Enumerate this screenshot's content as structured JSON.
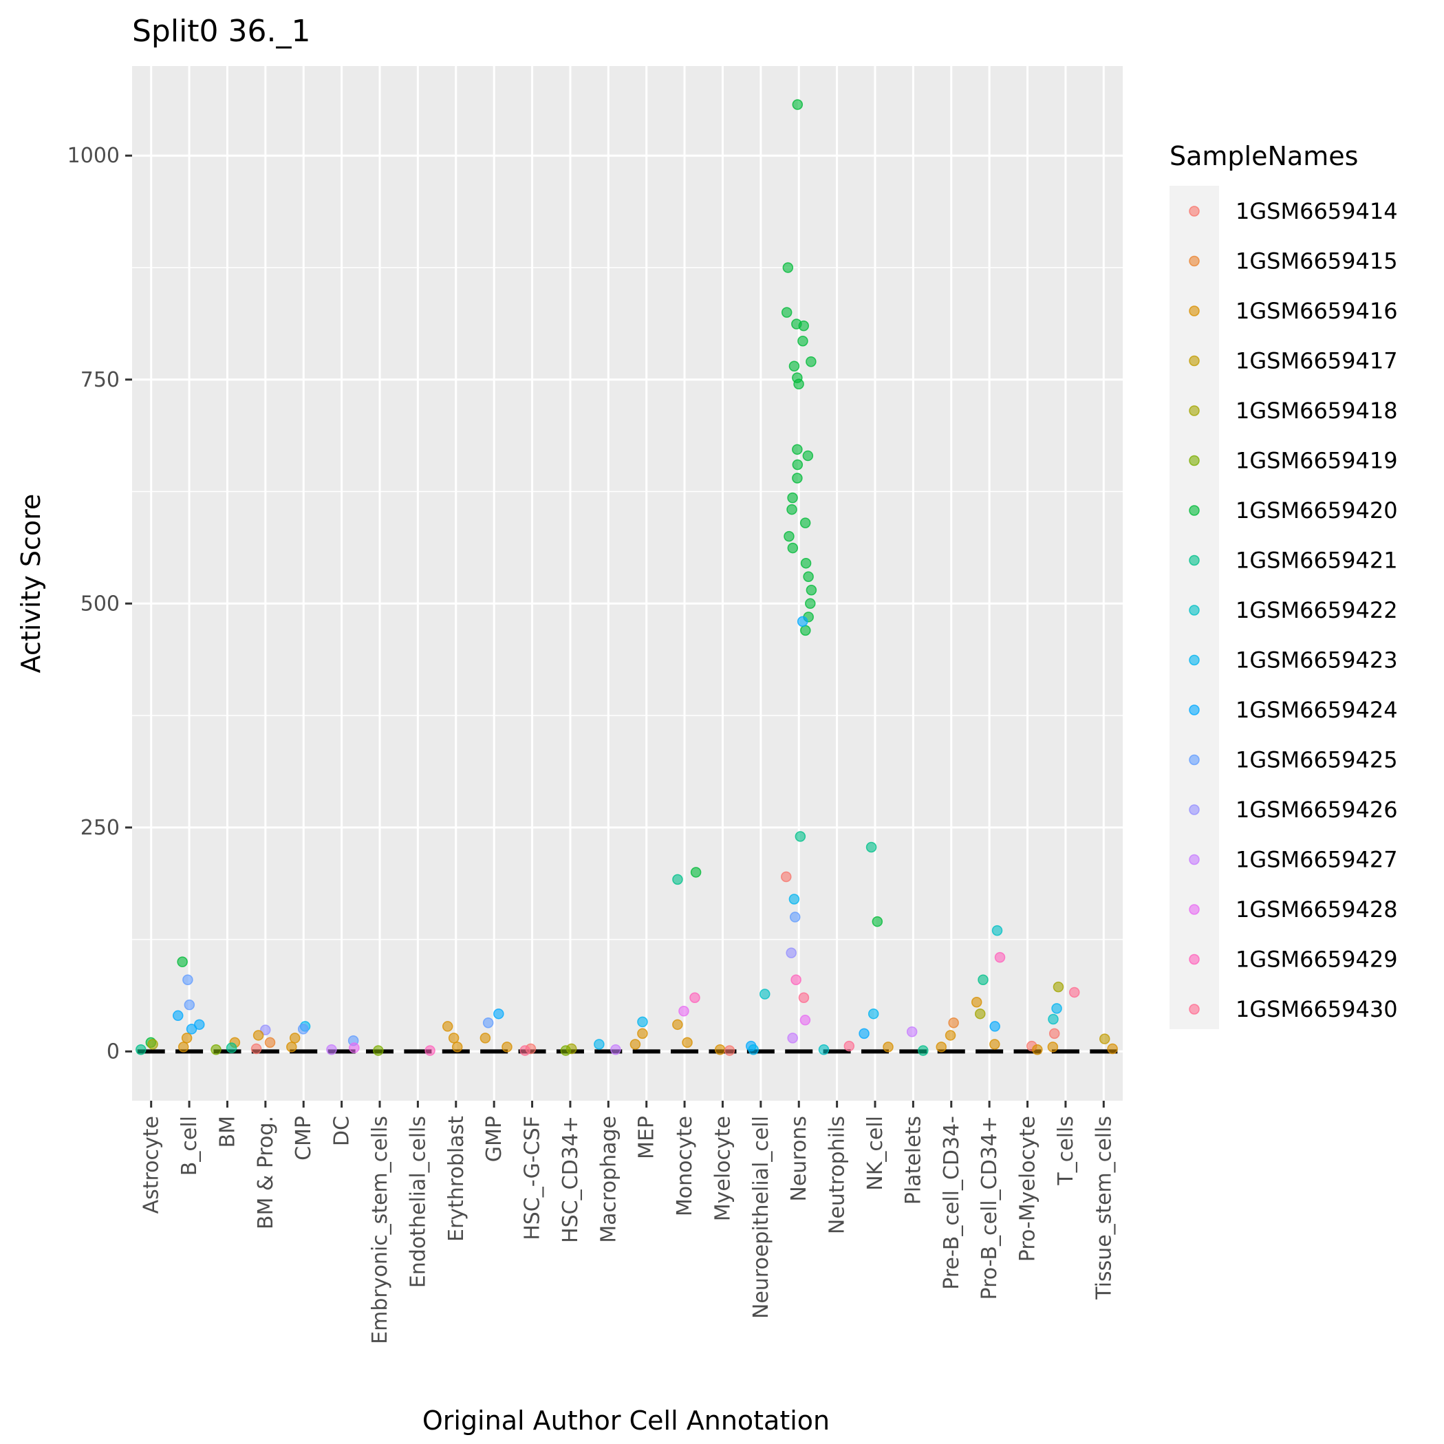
{
  "chart_data": {
    "type": "scatter",
    "title": "Split0 36._1",
    "xlabel": "Original Author Cell Annotation",
    "ylabel": "Activity Score",
    "ylim": [
      -55,
      1100
    ],
    "yticks": [
      0,
      250,
      500,
      750,
      1000
    ],
    "grid": true,
    "legend_position": "right",
    "legend_title": "SampleNames",
    "categories": [
      "Astrocyte",
      "B_cell",
      "BM",
      "BM & Prog.",
      "CMP",
      "DC",
      "Embryonic_stem_cells",
      "Endothelial_cells",
      "Erythroblast",
      "GMP",
      "HSC_-G-CSF",
      "HSC_CD34+",
      "Macrophage",
      "MEP",
      "Monocyte",
      "Myelocyte",
      "Neuroepithelial_cell",
      "Neurons",
      "Neutrophils",
      "NK_cell",
      "Platelets",
      "Pre-B_cell_CD34-",
      "Pro-B_cell_CD34+",
      "Pro-Myelocyte",
      "T_cells",
      "Tissue_stem_cells"
    ],
    "series": [
      {
        "name": "1GSM6659414",
        "color": "#F8766D"
      },
      {
        "name": "1GSM6659415",
        "color": "#EA8331"
      },
      {
        "name": "1GSM6659416",
        "color": "#D89000"
      },
      {
        "name": "1GSM6659417",
        "color": "#C09B00"
      },
      {
        "name": "1GSM6659418",
        "color": "#A3A500"
      },
      {
        "name": "1GSM6659419",
        "color": "#7CAE00"
      },
      {
        "name": "1GSM6659420",
        "color": "#00BA38"
      },
      {
        "name": "1GSM6659421",
        "color": "#00C08B"
      },
      {
        "name": "1GSM6659422",
        "color": "#00BFC4"
      },
      {
        "name": "1GSM6659423",
        "color": "#00B4F0"
      },
      {
        "name": "1GSM6659424",
        "color": "#00A9FF"
      },
      {
        "name": "1GSM6659425",
        "color": "#619CFF"
      },
      {
        "name": "1GSM6659426",
        "color": "#9590FF"
      },
      {
        "name": "1GSM6659427",
        "color": "#C77CFF"
      },
      {
        "name": "1GSM6659428",
        "color": "#E76BF3"
      },
      {
        "name": "1GSM6659429",
        "color": "#FF62BC"
      },
      {
        "name": "1GSM6659430",
        "color": "#FF6C91"
      }
    ],
    "points": [
      {
        "category": "Astrocyte",
        "sample": "1GSM6659420",
        "y": 10
      },
      {
        "category": "Astrocyte",
        "sample": "1GSM6659418",
        "y": 8
      },
      {
        "category": "Astrocyte",
        "sample": "1GSM6659421",
        "y": 2
      },
      {
        "category": "B_cell",
        "sample": "1GSM6659420",
        "y": 100
      },
      {
        "category": "B_cell",
        "sample": "1GSM6659425",
        "y": 80
      },
      {
        "category": "B_cell",
        "sample": "1GSM6659425",
        "y": 52
      },
      {
        "category": "B_cell",
        "sample": "1GSM6659424",
        "y": 40
      },
      {
        "category": "B_cell",
        "sample": "1GSM6659424",
        "y": 30
      },
      {
        "category": "B_cell",
        "sample": "1GSM6659424",
        "y": 25
      },
      {
        "category": "B_cell",
        "sample": "1GSM6659416",
        "y": 15
      },
      {
        "category": "B_cell",
        "sample": "1GSM6659416",
        "y": 5
      },
      {
        "category": "BM",
        "sample": "1GSM6659416",
        "y": 10
      },
      {
        "category": "BM",
        "sample": "1GSM6659421",
        "y": 4
      },
      {
        "category": "BM",
        "sample": "1GSM6659419",
        "y": 2
      },
      {
        "category": "BM & Prog.",
        "sample": "1GSM6659426",
        "y": 24
      },
      {
        "category": "BM & Prog.",
        "sample": "1GSM6659416",
        "y": 18
      },
      {
        "category": "BM & Prog.",
        "sample": "1GSM6659415",
        "y": 10
      },
      {
        "category": "BM & Prog.",
        "sample": "1GSM6659414",
        "y": 3
      },
      {
        "category": "CMP",
        "sample": "1GSM6659423",
        "y": 28
      },
      {
        "category": "CMP",
        "sample": "1GSM6659425",
        "y": 25
      },
      {
        "category": "CMP",
        "sample": "1GSM6659416",
        "y": 15
      },
      {
        "category": "CMP",
        "sample": "1GSM6659416",
        "y": 5
      },
      {
        "category": "DC",
        "sample": "1GSM6659425",
        "y": 12
      },
      {
        "category": "DC",
        "sample": "1GSM6659428",
        "y": 4
      },
      {
        "category": "DC",
        "sample": "1GSM6659427",
        "y": 2
      },
      {
        "category": "Embryonic_stem_cells",
        "sample": "1GSM6659419",
        "y": 1
      },
      {
        "category": "Endothelial_cells",
        "sample": "1GSM6659429",
        "y": 1
      },
      {
        "category": "Erythroblast",
        "sample": "1GSM6659416",
        "y": 28
      },
      {
        "category": "Erythroblast",
        "sample": "1GSM6659416",
        "y": 15
      },
      {
        "category": "Erythroblast",
        "sample": "1GSM6659416",
        "y": 5
      },
      {
        "category": "GMP",
        "sample": "1GSM6659424",
        "y": 42
      },
      {
        "category": "GMP",
        "sample": "1GSM6659425",
        "y": 32
      },
      {
        "category": "GMP",
        "sample": "1GSM6659416",
        "y": 15
      },
      {
        "category": "GMP",
        "sample": "1GSM6659416",
        "y": 5
      },
      {
        "category": "HSC_-G-CSF",
        "sample": "1GSM6659414",
        "y": 3
      },
      {
        "category": "HSC_-G-CSF",
        "sample": "1GSM6659430",
        "y": 1
      },
      {
        "category": "HSC_CD34+",
        "sample": "1GSM6659418",
        "y": 3
      },
      {
        "category": "HSC_CD34+",
        "sample": "1GSM6659419",
        "y": 1
      },
      {
        "category": "Macrophage",
        "sample": "1GSM6659423",
        "y": 8
      },
      {
        "category": "Macrophage",
        "sample": "1GSM6659427",
        "y": 2
      },
      {
        "category": "MEP",
        "sample": "1GSM6659423",
        "y": 33
      },
      {
        "category": "MEP",
        "sample": "1GSM6659416",
        "y": 20
      },
      {
        "category": "MEP",
        "sample": "1GSM6659416",
        "y": 8
      },
      {
        "category": "Monocyte",
        "sample": "1GSM6659420",
        "y": 200
      },
      {
        "category": "Monocyte",
        "sample": "1GSM6659421",
        "y": 192
      },
      {
        "category": "Monocyte",
        "sample": "1GSM6659429",
        "y": 60
      },
      {
        "category": "Monocyte",
        "sample": "1GSM6659428",
        "y": 45
      },
      {
        "category": "Monocyte",
        "sample": "1GSM6659416",
        "y": 30
      },
      {
        "category": "Monocyte",
        "sample": "1GSM6659416",
        "y": 10
      },
      {
        "category": "Myelocyte",
        "sample": "1GSM6659416",
        "y": 2
      },
      {
        "category": "Myelocyte",
        "sample": "1GSM6659414",
        "y": 1
      },
      {
        "category": "Neuroepithelial_cell",
        "sample": "1GSM6659422",
        "y": 64
      },
      {
        "category": "Neuroepithelial_cell",
        "sample": "1GSM6659424",
        "y": 6
      },
      {
        "category": "Neuroepithelial_cell",
        "sample": "1GSM6659423",
        "y": 2
      },
      {
        "category": "Neurons",
        "sample": "1GSM6659420",
        "y": 1057
      },
      {
        "category": "Neurons",
        "sample": "1GSM6659420",
        "y": 875
      },
      {
        "category": "Neurons",
        "sample": "1GSM6659420",
        "y": 825
      },
      {
        "category": "Neurons",
        "sample": "1GSM6659420",
        "y": 812
      },
      {
        "category": "Neurons",
        "sample": "1GSM6659420",
        "y": 810
      },
      {
        "category": "Neurons",
        "sample": "1GSM6659420",
        "y": 793
      },
      {
        "category": "Neurons",
        "sample": "1GSM6659420",
        "y": 770
      },
      {
        "category": "Neurons",
        "sample": "1GSM6659420",
        "y": 765
      },
      {
        "category": "Neurons",
        "sample": "1GSM6659420",
        "y": 752
      },
      {
        "category": "Neurons",
        "sample": "1GSM6659420",
        "y": 745
      },
      {
        "category": "Neurons",
        "sample": "1GSM6659420",
        "y": 672
      },
      {
        "category": "Neurons",
        "sample": "1GSM6659420",
        "y": 665
      },
      {
        "category": "Neurons",
        "sample": "1GSM6659420",
        "y": 655
      },
      {
        "category": "Neurons",
        "sample": "1GSM6659420",
        "y": 640
      },
      {
        "category": "Neurons",
        "sample": "1GSM6659420",
        "y": 618
      },
      {
        "category": "Neurons",
        "sample": "1GSM6659420",
        "y": 605
      },
      {
        "category": "Neurons",
        "sample": "1GSM6659420",
        "y": 590
      },
      {
        "category": "Neurons",
        "sample": "1GSM6659420",
        "y": 575
      },
      {
        "category": "Neurons",
        "sample": "1GSM6659420",
        "y": 562
      },
      {
        "category": "Neurons",
        "sample": "1GSM6659420",
        "y": 545
      },
      {
        "category": "Neurons",
        "sample": "1GSM6659420",
        "y": 530
      },
      {
        "category": "Neurons",
        "sample": "1GSM6659420",
        "y": 515
      },
      {
        "category": "Neurons",
        "sample": "1GSM6659420",
        "y": 500
      },
      {
        "category": "Neurons",
        "sample": "1GSM6659420",
        "y": 485
      },
      {
        "category": "Neurons",
        "sample": "1GSM6659420",
        "y": 470
      },
      {
        "category": "Neurons",
        "sample": "1GSM6659424",
        "y": 480
      },
      {
        "category": "Neurons",
        "sample": "1GSM6659421",
        "y": 240
      },
      {
        "category": "Neurons",
        "sample": "1GSM6659414",
        "y": 195
      },
      {
        "category": "Neurons",
        "sample": "1GSM6659423",
        "y": 170
      },
      {
        "category": "Neurons",
        "sample": "1GSM6659425",
        "y": 150
      },
      {
        "category": "Neurons",
        "sample": "1GSM6659426",
        "y": 110
      },
      {
        "category": "Neurons",
        "sample": "1GSM6659429",
        "y": 80
      },
      {
        "category": "Neurons",
        "sample": "1GSM6659430",
        "y": 60
      },
      {
        "category": "Neurons",
        "sample": "1GSM6659428",
        "y": 35
      },
      {
        "category": "Neurons",
        "sample": "1GSM6659427",
        "y": 15
      },
      {
        "category": "Neutrophils",
        "sample": "1GSM6659430",
        "y": 6
      },
      {
        "category": "Neutrophils",
        "sample": "1GSM6659422",
        "y": 2
      },
      {
        "category": "NK_cell",
        "sample": "1GSM6659421",
        "y": 228
      },
      {
        "category": "NK_cell",
        "sample": "1GSM6659420",
        "y": 145
      },
      {
        "category": "NK_cell",
        "sample": "1GSM6659423",
        "y": 42
      },
      {
        "category": "NK_cell",
        "sample": "1GSM6659424",
        "y": 20
      },
      {
        "category": "NK_cell",
        "sample": "1GSM6659416",
        "y": 5
      },
      {
        "category": "Platelets",
        "sample": "1GSM6659427",
        "y": 22
      },
      {
        "category": "Platelets",
        "sample": "1GSM6659421",
        "y": 1
      },
      {
        "category": "Pre-B_cell_CD34-",
        "sample": "1GSM6659415",
        "y": 32
      },
      {
        "category": "Pre-B_cell_CD34-",
        "sample": "1GSM6659416",
        "y": 18
      },
      {
        "category": "Pre-B_cell_CD34-",
        "sample": "1GSM6659416",
        "y": 5
      },
      {
        "category": "Pro-B_cell_CD34+",
        "sample": "1GSM6659422",
        "y": 135
      },
      {
        "category": "Pro-B_cell_CD34+",
        "sample": "1GSM6659429",
        "y": 105
      },
      {
        "category": "Pro-B_cell_CD34+",
        "sample": "1GSM6659421",
        "y": 80
      },
      {
        "category": "Pro-B_cell_CD34+",
        "sample": "1GSM6659416",
        "y": 55
      },
      {
        "category": "Pro-B_cell_CD34+",
        "sample": "1GSM6659418",
        "y": 42
      },
      {
        "category": "Pro-B_cell_CD34+",
        "sample": "1GSM6659424",
        "y": 28
      },
      {
        "category": "Pro-B_cell_CD34+",
        "sample": "1GSM6659416",
        "y": 8
      },
      {
        "category": "Pro-Myelocyte",
        "sample": "1GSM6659414",
        "y": 6
      },
      {
        "category": "Pro-Myelocyte",
        "sample": "1GSM6659416",
        "y": 2
      },
      {
        "category": "T_cells",
        "sample": "1GSM6659418",
        "y": 72
      },
      {
        "category": "T_cells",
        "sample": "1GSM6659430",
        "y": 66
      },
      {
        "category": "T_cells",
        "sample": "1GSM6659423",
        "y": 48
      },
      {
        "category": "T_cells",
        "sample": "1GSM6659422",
        "y": 36
      },
      {
        "category": "T_cells",
        "sample": "1GSM6659414",
        "y": 20
      },
      {
        "category": "T_cells",
        "sample": "1GSM6659416",
        "y": 5
      },
      {
        "category": "Tissue_stem_cells",
        "sample": "1GSM6659417",
        "y": 14
      },
      {
        "category": "Tissue_stem_cells",
        "sample": "1GSM6659416",
        "y": 3
      }
    ]
  }
}
